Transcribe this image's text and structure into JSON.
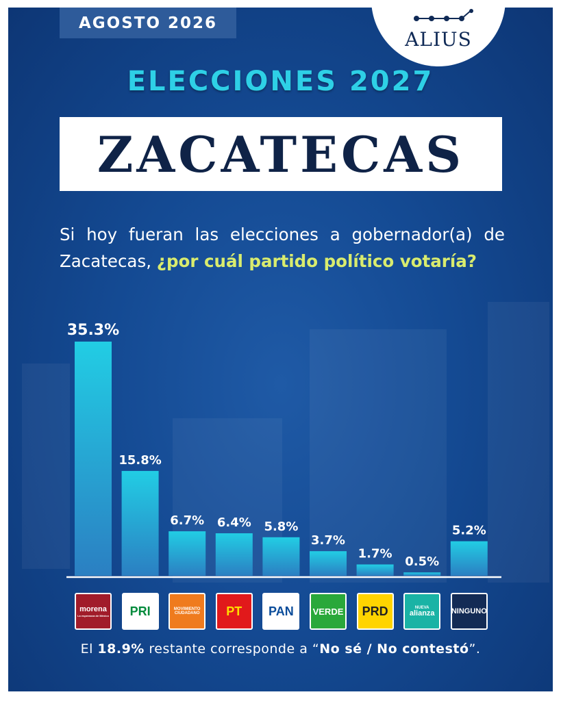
{
  "header": {
    "date_label": "AGOSTO 2026",
    "brand": "ALIUS",
    "subtitle": "ELECCIONES 2027",
    "title": "ZACATECAS"
  },
  "question": {
    "part1": "Si hoy fueran las elecciones a gobernador(a) de Zacatecas, ",
    "highlight": "¿por cuál partido político votaría?"
  },
  "footnote": {
    "prefix": "El ",
    "value": "18.9%",
    "middle": " restante corresponde a “",
    "answer": "No sé / No contestó",
    "suffix": "”."
  },
  "colors": {
    "background": "#144a93",
    "bar_top": "#22cde4",
    "bar_bottom": "#2b7fc2",
    "accent_value": "#d9ec6e",
    "subtitle": "#2ed0e6"
  },
  "party_logos": [
    {
      "name": "morena",
      "sub": "La esperanza de México",
      "bg": "#a11c2a",
      "fg": "#ffffff"
    },
    {
      "name": "PRI",
      "bg": "#ffffff",
      "fg": "#008a3b"
    },
    {
      "name": "MOVIMIENTO CIUDADANO",
      "bg": "#ef7b1e",
      "fg": "#ffffff"
    },
    {
      "name": "PT",
      "bg": "#e1191b",
      "fg": "#ffdd00"
    },
    {
      "name": "PAN",
      "bg": "#ffffff",
      "fg": "#0a4c9a"
    },
    {
      "name": "VERDE",
      "bg": "#2aa83a",
      "fg": "#ffffff"
    },
    {
      "name": "PRD",
      "bg": "#ffd400",
      "fg": "#222222"
    },
    {
      "name": "alianza",
      "sub": "NUEVA",
      "bg": "#1ab3a5",
      "fg": "#ffffff"
    },
    {
      "name": "NINGUNO",
      "bg": "#132b55",
      "fg": "#ffffff"
    }
  ],
  "chart_data": {
    "type": "bar",
    "categories": [
      "Morena",
      "PRI",
      "Movimiento Ciudadano",
      "PT",
      "PAN",
      "Verde",
      "PRD",
      "Nueva Alianza",
      "Ninguno"
    ],
    "values": [
      35.3,
      15.8,
      6.7,
      6.4,
      5.8,
      3.7,
      1.7,
      0.5,
      5.2
    ],
    "value_labels": [
      "35.3%",
      "15.8%",
      "6.7%",
      "6.4%",
      "5.8%",
      "3.7%",
      "1.7%",
      "0.5%",
      "5.2%"
    ],
    "title": "",
    "xlabel": "",
    "ylabel": "",
    "ylim": [
      0,
      35.3
    ],
    "grid": false,
    "legend": "none"
  }
}
